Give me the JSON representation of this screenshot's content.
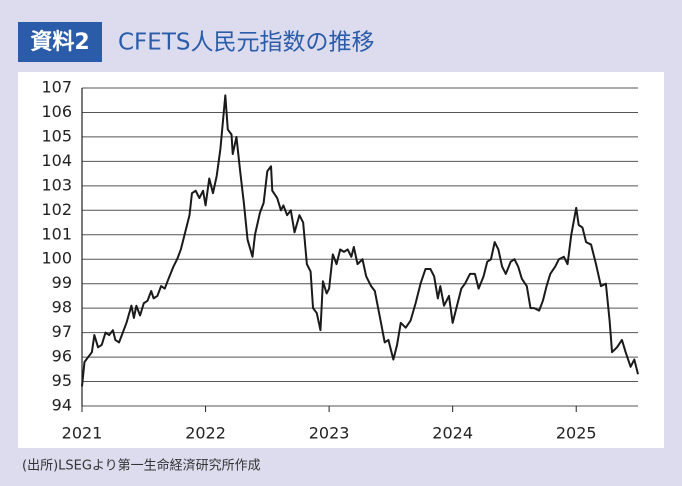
{
  "chart_data": {
    "type": "line",
    "badge": "資料2",
    "title": "CFETS人民元指数の推移",
    "source": "(出所)LSEGより第一生命経済研究所作成",
    "xlim": [
      2021,
      2025.5
    ],
    "xticks": [
      2021,
      2022,
      2023,
      2024,
      2025
    ],
    "ylim": [
      94,
      107
    ],
    "yticks": [
      94,
      95,
      96,
      97,
      98,
      99,
      100,
      101,
      102,
      103,
      104,
      105,
      106,
      107
    ],
    "grid": true,
    "color": "#1a1a1a",
    "x": [
      2021.0,
      2021.02,
      2021.05,
      2021.08,
      2021.1,
      2021.13,
      2021.16,
      2021.19,
      2021.22,
      2021.25,
      2021.27,
      2021.3,
      2021.33,
      2021.36,
      2021.4,
      2021.42,
      2021.44,
      2021.47,
      2021.5,
      2021.53,
      2021.56,
      2021.58,
      2021.61,
      2021.64,
      2021.67,
      2021.7,
      2021.74,
      2021.77,
      2021.8,
      2021.84,
      2021.87,
      2021.89,
      2021.92,
      2021.95,
      2021.98,
      2022.0,
      2022.03,
      2022.06,
      2022.09,
      2022.12,
      2022.16,
      2022.18,
      2022.21,
      2022.22,
      2022.25,
      2022.28,
      2022.31,
      2022.34,
      2022.38,
      2022.4,
      2022.44,
      2022.47,
      2022.5,
      2022.53,
      2022.54,
      2022.58,
      2022.61,
      2022.63,
      2022.66,
      2022.69,
      2022.72,
      2022.76,
      2022.79,
      2022.82,
      2022.85,
      2022.87,
      2022.9,
      2022.93,
      2022.95,
      2022.98,
      2023.0,
      2023.03,
      2023.06,
      2023.09,
      2023.12,
      2023.15,
      2023.18,
      2023.2,
      2023.23,
      2023.27,
      2023.3,
      2023.34,
      2023.37,
      2023.42,
      2023.45,
      2023.48,
      2023.52,
      2023.55,
      2023.58,
      2023.62,
      2023.66,
      2023.7,
      2023.74,
      2023.78,
      2023.82,
      2023.85,
      2023.88,
      2023.9,
      2023.93,
      2023.97,
      2024.0,
      2024.03,
      2024.07,
      2024.1,
      2024.14,
      2024.18,
      2024.21,
      2024.25,
      2024.28,
      2024.31,
      2024.34,
      2024.37,
      2024.4,
      2024.43,
      2024.47,
      2024.5,
      2024.53,
      2024.56,
      2024.6,
      2024.63,
      2024.66,
      2024.7,
      2024.73,
      2024.76,
      2024.79,
      2024.83,
      2024.86,
      2024.9,
      2024.93,
      2024.96,
      2025.0,
      2025.02,
      2025.05,
      2025.08,
      2025.12,
      2025.16,
      2025.2,
      2025.24,
      2025.27,
      2025.29,
      2025.33,
      2025.37,
      2025.4,
      2025.44,
      2025.47,
      2025.5
    ],
    "values": [
      94.8,
      95.8,
      96.0,
      96.2,
      96.9,
      96.4,
      96.5,
      97.0,
      96.9,
      97.1,
      96.7,
      96.6,
      97.0,
      97.4,
      98.1,
      97.6,
      98.1,
      97.7,
      98.2,
      98.3,
      98.7,
      98.4,
      98.5,
      98.9,
      98.8,
      99.2,
      99.7,
      100.0,
      100.4,
      101.2,
      101.8,
      102.7,
      102.8,
      102.5,
      102.8,
      102.2,
      103.3,
      102.7,
      103.4,
      104.5,
      106.7,
      105.3,
      105.1,
      104.3,
      105.0,
      103.6,
      102.3,
      100.8,
      100.1,
      101.0,
      101.9,
      102.3,
      103.6,
      103.8,
      102.8,
      102.5,
      102.0,
      102.2,
      101.8,
      102.0,
      101.1,
      101.8,
      101.5,
      99.8,
      99.5,
      98.0,
      97.8,
      97.1,
      99.1,
      98.6,
      98.8,
      100.2,
      99.8,
      100.4,
      100.3,
      100.4,
      100.1,
      100.5,
      99.8,
      100.0,
      99.3,
      98.9,
      98.7,
      97.4,
      96.6,
      96.7,
      95.9,
      96.5,
      97.4,
      97.2,
      97.5,
      98.2,
      99.0,
      99.6,
      99.6,
      99.3,
      98.4,
      98.9,
      98.1,
      98.5,
      97.4,
      98.0,
      98.8,
      99.0,
      99.4,
      99.4,
      98.8,
      99.3,
      99.9,
      100.0,
      100.7,
      100.4,
      99.7,
      99.4,
      99.9,
      100.0,
      99.7,
      99.2,
      98.9,
      98.0,
      98.0,
      97.9,
      98.3,
      98.9,
      99.4,
      99.7,
      100.0,
      100.1,
      99.8,
      101.0,
      102.1,
      101.4,
      101.3,
      100.7,
      100.6,
      99.8,
      98.9,
      99.0,
      97.5,
      96.2,
      96.4,
      96.7,
      96.2,
      95.6,
      95.9,
      95.3
    ]
  }
}
